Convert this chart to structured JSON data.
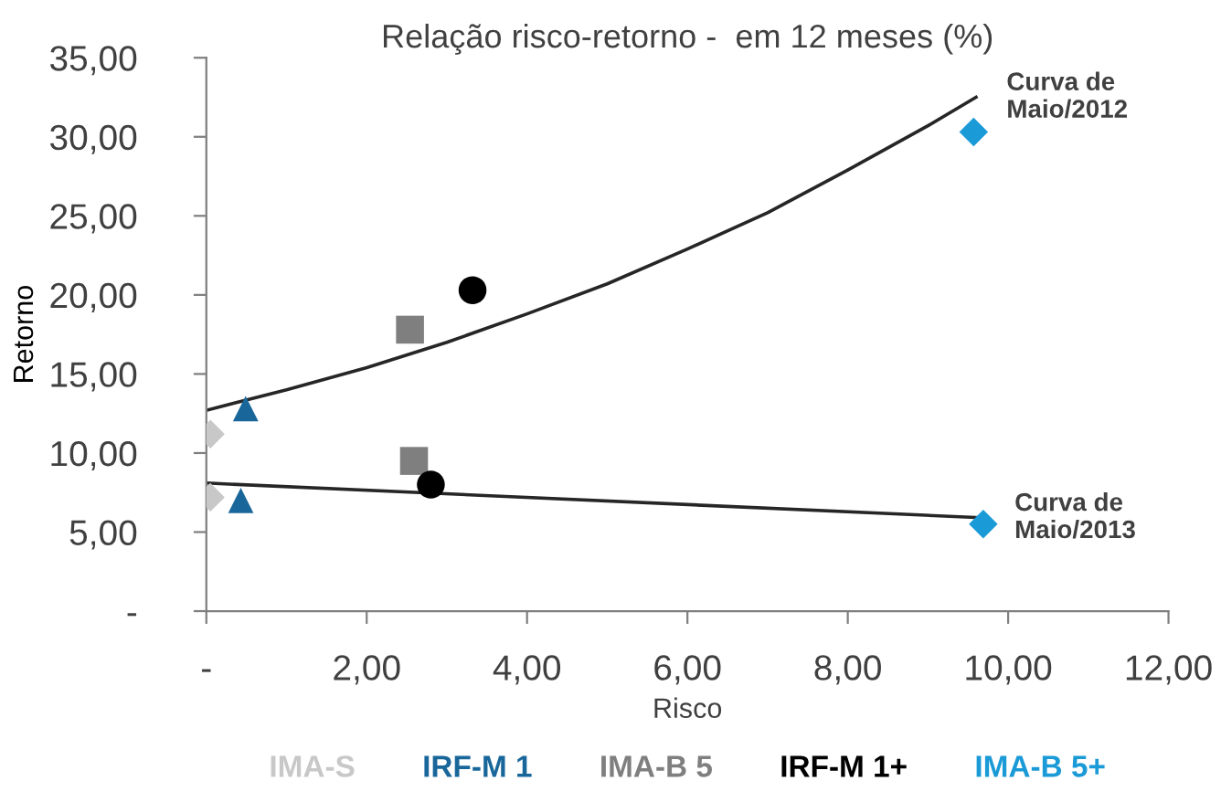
{
  "chart_data": {
    "type": "scatter",
    "title": "Relação risco-retorno -  em 12 meses (%)",
    "xlabel": "Risco",
    "ylabel": "Retorno",
    "series": [
      {
        "name": "IMA-S",
        "color": "#c8c8c8",
        "marker": "diamond",
        "x": [
          0.05,
          0.05
        ],
        "values": [
          11.2,
          7.2
        ]
      },
      {
        "name": "IRF-M 1",
        "color": "#19679a",
        "marker": "triangle",
        "x": [
          0.49,
          0.43
        ],
        "values": [
          12.8,
          7.0
        ]
      },
      {
        "name": "IMA-B 5",
        "color": "#7f7f7f",
        "marker": "square",
        "x": [
          2.54,
          2.59
        ],
        "values": [
          17.8,
          9.5
        ]
      },
      {
        "name": "IRF-M 1+",
        "color": "#000000",
        "marker": "circle",
        "x": [
          3.32,
          2.8
        ],
        "values": [
          20.3,
          8.0
        ]
      },
      {
        "name": "IMA-B 5+",
        "color": "#1a9ad6",
        "marker": "diamond",
        "x": [
          9.57,
          9.69
        ],
        "values": [
          30.3,
          5.5
        ]
      },
      {
        "type": "line",
        "color": "#262626",
        "marker": "none",
        "x": [
          0,
          1,
          2,
          3,
          4,
          5,
          6,
          7,
          8,
          9,
          9.6
        ],
        "values": [
          12.7,
          14.0,
          15.4,
          17.0,
          18.8,
          20.7,
          22.9,
          25.2,
          27.9,
          30.7,
          32.5
        ]
      },
      {
        "type": "line",
        "color": "#262626",
        "marker": "none",
        "x": [
          0,
          9.7
        ],
        "values": [
          8.1,
          5.9
        ]
      }
    ],
    "annotations": [
      {
        "text": "Curva de\nMaio/2012",
        "x": 9.6,
        "y": 32.5
      },
      {
        "text": "Curva de\nMaio/2013",
        "x": 9.7,
        "y": 5.9
      }
    ],
    "xlim": [
      0,
      12
    ],
    "xticks": [
      {
        "value": 0,
        "label": "-"
      },
      {
        "value": 2,
        "label": "2,00"
      },
      {
        "value": 4,
        "label": "4,00"
      },
      {
        "value": 6,
        "label": "6,00"
      },
      {
        "value": 8,
        "label": "8,00"
      },
      {
        "value": 10,
        "label": "10,00"
      },
      {
        "value": 12,
        "label": "12,00"
      }
    ],
    "ylim": [
      0,
      35
    ],
    "yticks": [
      {
        "value": 0,
        "label": "-"
      },
      {
        "value": 5,
        "label": "5,00"
      },
      {
        "value": 10,
        "label": "10,00"
      },
      {
        "value": 15,
        "label": "15,00"
      },
      {
        "value": 20,
        "label": "20,00"
      },
      {
        "value": 25,
        "label": "25,00"
      },
      {
        "value": 30,
        "label": "30,00"
      },
      {
        "value": 35,
        "label": "35,00"
      }
    ],
    "grid": false,
    "legend": "bottom"
  }
}
